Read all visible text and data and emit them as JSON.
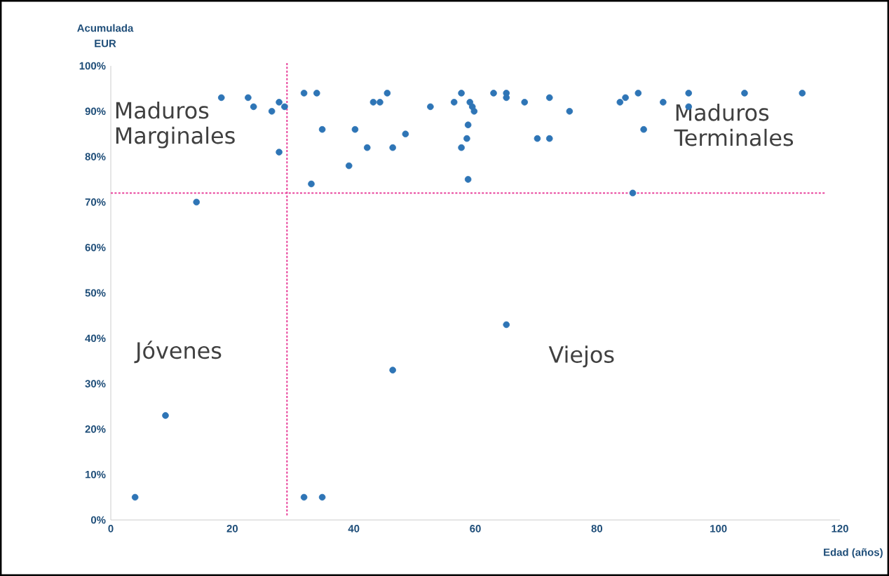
{
  "chart_data": {
    "type": "scatter",
    "xlabel": "Edad (años)",
    "ylabel": "Acumulada EUR",
    "x": [
      4,
      9,
      14.1,
      18.2,
      22.6,
      23.5,
      26.5,
      27.7,
      28.6,
      27.7,
      31.8,
      33.9,
      34.8,
      33.0,
      40.2,
      39.2,
      42.2,
      46.4,
      48.5,
      43.2,
      44.3,
      45.5,
      52.6,
      56.5,
      57.7,
      59.1,
      59.5,
      59.8,
      58.8,
      58.6,
      57.7,
      58.8,
      63.0,
      65.1,
      65.1,
      68.1,
      72.2,
      75.5,
      70.2,
      72.2,
      83.8,
      84.7,
      86.8,
      90.9,
      87.7,
      95.1,
      95.1,
      85.9,
      104.3,
      113.8,
      31.8,
      34.8,
      46.4,
      65.1
    ],
    "values": [
      5,
      23,
      70,
      93,
      93,
      91,
      90,
      92,
      91,
      81,
      94,
      94,
      86,
      74,
      86,
      78,
      82,
      82,
      85,
      92,
      92,
      94,
      91,
      92,
      94,
      92,
      91,
      90,
      87,
      84,
      82,
      75,
      94,
      94,
      93,
      92,
      93,
      90,
      84,
      84,
      92,
      93,
      94,
      92,
      86,
      94,
      91,
      72,
      94,
      94,
      5,
      5,
      33,
      43
    ],
    "color": "#2e75b6",
    "marker": "circle",
    "grid": false,
    "xlim": [
      0,
      120
    ],
    "xticks": [
      0,
      20,
      40,
      60,
      80,
      100,
      120
    ],
    "ylim": [
      0,
      100
    ],
    "yticks": [
      {
        "value": 0,
        "label": "0%"
      },
      {
        "value": 10,
        "label": "10%"
      },
      {
        "value": 20,
        "label": "20%"
      },
      {
        "value": 30,
        "label": "30%"
      },
      {
        "value": 40,
        "label": "40%"
      },
      {
        "value": 50,
        "label": "50%"
      },
      {
        "value": 60,
        "label": "60%"
      },
      {
        "value": 70,
        "label": "70%"
      },
      {
        "value": 80,
        "label": "80%"
      },
      {
        "value": 90,
        "label": "90%"
      },
      {
        "value": 100,
        "label": "100%"
      }
    ],
    "ref_lines": [
      {
        "axis": "y",
        "value": 72,
        "color": "#e8409a",
        "line_style": "dotted"
      },
      {
        "axis": "x",
        "value": 29,
        "color": "#e8409a",
        "line_style": "dotted"
      }
    ],
    "annotations": [
      "Maduros Marginales",
      "Maduros Terminales",
      "Jóvenes",
      "Viejos"
    ]
  }
}
